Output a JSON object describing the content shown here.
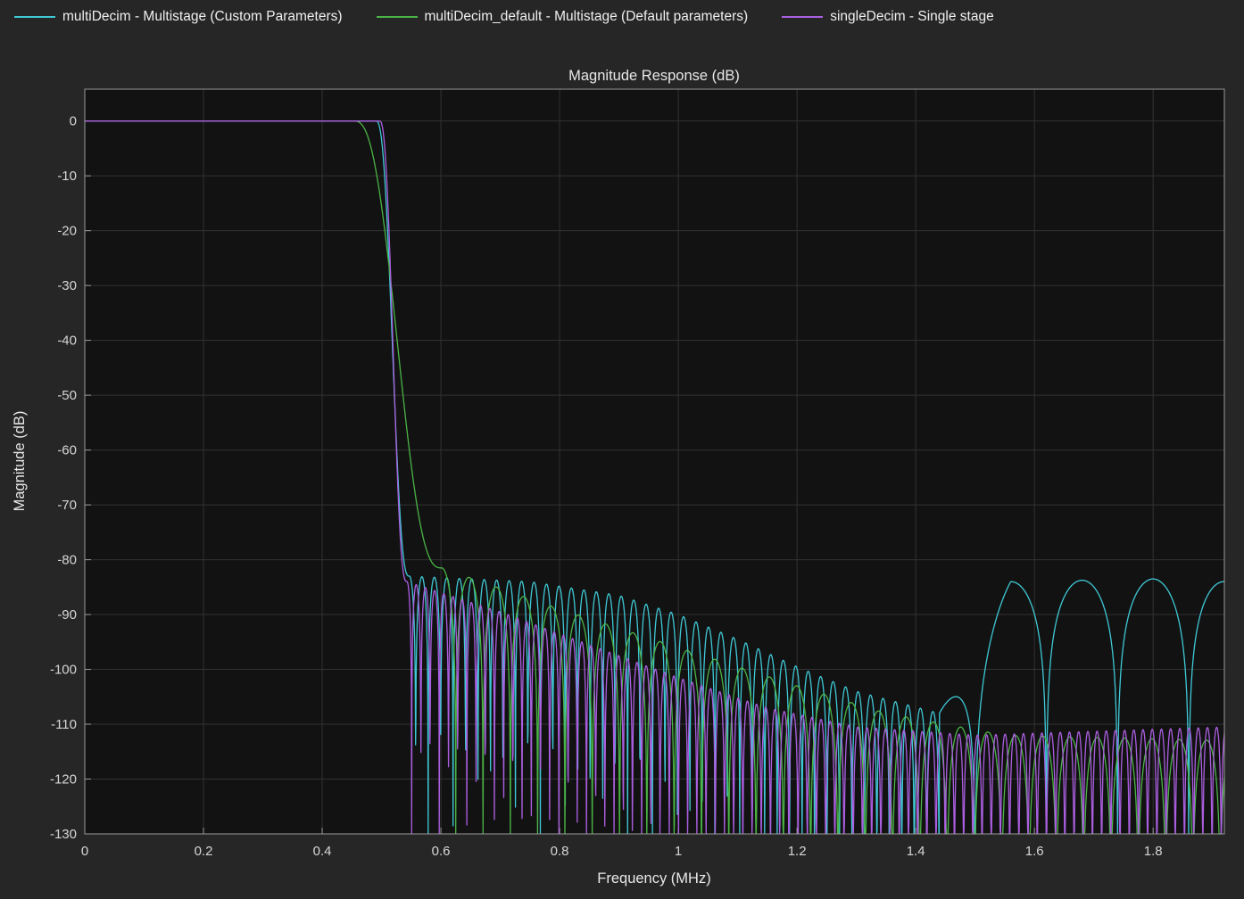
{
  "figure": {
    "background": "#262626",
    "plot_background": "#121212",
    "grid_color": "#323232",
    "axis_color": "#9b9b9b",
    "text_color": "#e8e8e8"
  },
  "legend": {
    "items": [
      {
        "label": "multiDecim - Multistage (Custom Parameters)",
        "color": "#3fc9d6"
      },
      {
        "label": "multiDecim_default - Multistage (Default parameters)",
        "color": "#4bb446"
      },
      {
        "label": "singleDecim - Single stage",
        "color": "#ab5fe0"
      }
    ]
  },
  "chart_data": {
    "type": "line",
    "title": "Magnitude Response (dB)",
    "xlabel": "Frequency (MHz)",
    "ylabel": "Magnitude (dB)",
    "xlim": [
      0,
      1.92
    ],
    "ylim": [
      -130,
      5.8
    ],
    "grid": true,
    "legend_position": "top-left",
    "xticks": [
      {
        "value": 0,
        "label": "0"
      },
      {
        "value": 0.2,
        "label": "0.2"
      },
      {
        "value": 0.4,
        "label": "0.4"
      },
      {
        "value": 0.6,
        "label": "0.6"
      },
      {
        "value": 0.8,
        "label": "0.8"
      },
      {
        "value": 1,
        "label": "1"
      },
      {
        "value": 1.2,
        "label": "1.2"
      },
      {
        "value": 1.4,
        "label": "1.4"
      },
      {
        "value": 1.6,
        "label": "1.6"
      },
      {
        "value": 1.8,
        "label": "1.8"
      }
    ],
    "yticks": [
      {
        "value": 0,
        "label": "0"
      },
      {
        "value": -10,
        "label": "-10"
      },
      {
        "value": -20,
        "label": "-20"
      },
      {
        "value": -30,
        "label": "-30"
      },
      {
        "value": -40,
        "label": "-40"
      },
      {
        "value": -50,
        "label": "-50"
      },
      {
        "value": -60,
        "label": "-60"
      },
      {
        "value": -70,
        "label": "-70"
      },
      {
        "value": -80,
        "label": "-80"
      },
      {
        "value": -90,
        "label": "-90"
      },
      {
        "value": -100,
        "label": "-100"
      },
      {
        "value": -110,
        "label": "-110"
      },
      {
        "value": -120,
        "label": "-120"
      },
      {
        "value": -130,
        "label": "-130"
      }
    ],
    "series": [
      {
        "name": "multiDecim - Multistage (Custom Parameters)",
        "color": "#3fc9d6",
        "description": "Flat 0 dB passband to ~0.49 MHz, steep transition, equiripple stopband ~-83 dB whose lobe envelope decays to ~-108 dB by 1.44 MHz, then wide final-stage lobes peaking near -84 dB from 1.5 to 1.92 MHz",
        "passband_db": 0,
        "passband_edge_mhz": 0.49,
        "stopband_edge_mhz": 0.547,
        "stopband_attenuation_db": -83,
        "envelope_points": [
          [
            0.547,
            -83
          ],
          [
            0.75,
            -84
          ],
          [
            0.9,
            -86.5
          ],
          [
            1.0,
            -90
          ],
          [
            1.1,
            -94.5
          ],
          [
            1.2,
            -99.5
          ],
          [
            1.3,
            -104
          ],
          [
            1.44,
            -108
          ],
          [
            1.56,
            -84
          ],
          [
            1.8,
            -83.5
          ],
          [
            1.92,
            -84
          ]
        ],
        "lobe_regions": [
          {
            "from": 0.547,
            "to": 1.44,
            "period_mhz": 0.021
          },
          {
            "from": 1.44,
            "to": 1.93,
            "period_mhz": 0.12
          }
        ]
      },
      {
        "name": "multiDecim_default - Multistage (Default parameters)",
        "color": "#4bb446",
        "description": "Flat 0 dB passband to ~0.45 MHz, wider transition reaching stopband at ~0.6 MHz, ripple lobes from ~-81 dB decaying to ~-113 dB at the right edge",
        "passband_db": 0,
        "passband_edge_mhz": 0.452,
        "stopband_edge_mhz": 0.602,
        "stopband_attenuation_db": -81,
        "envelope_points": [
          [
            0.602,
            -81.5
          ],
          [
            0.8,
            -89
          ],
          [
            1.0,
            -96
          ],
          [
            1.2,
            -103
          ],
          [
            1.35,
            -108
          ],
          [
            1.55,
            -112
          ],
          [
            1.92,
            -113
          ]
        ],
        "lobe_regions": [
          {
            "from": 0.602,
            "to": 1.93,
            "period_mhz": 0.046
          }
        ]
      },
      {
        "name": "singleDecim - Single stage",
        "color": "#ab5fe0",
        "description": "Flat 0 dB passband to ~0.5 MHz, steepest transition at ~0.54 MHz, dense ripple lobes from ~-84 dB decaying to ~-111 dB, deep nulls reaching below -130 dB",
        "passband_db": 0,
        "passband_edge_mhz": 0.496,
        "stopband_edge_mhz": 0.543,
        "stopband_attenuation_db": -84,
        "envelope_points": [
          [
            0.543,
            -84
          ],
          [
            0.7,
            -89.5
          ],
          [
            0.85,
            -95.5
          ],
          [
            1.0,
            -101.5
          ],
          [
            1.15,
            -107
          ],
          [
            1.3,
            -110.5
          ],
          [
            1.5,
            -112
          ],
          [
            1.92,
            -110.5
          ]
        ],
        "lobe_regions": [
          {
            "from": 0.543,
            "to": 1.93,
            "period_mhz": 0.0155
          }
        ]
      }
    ]
  }
}
